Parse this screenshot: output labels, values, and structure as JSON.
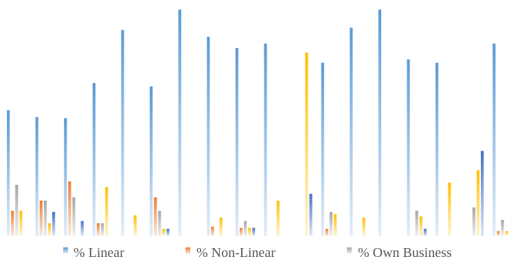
{
  "chart_data": {
    "type": "bar",
    "title": "",
    "xlabel": "",
    "ylabel": "",
    "ylim": [
      0,
      100
    ],
    "grid": false,
    "legend_position": "bottom",
    "categories": [
      "",
      "",
      "",
      "",
      "",
      "",
      "",
      "",
      "",
      "",
      "",
      "",
      "",
      "",
      "",
      "",
      "",
      ""
    ],
    "series": [
      {
        "name": "% Linear",
        "color": "#5B9BD5",
        "values": [
          55.5,
          52.5,
          52,
          67.5,
          91,
          66,
          100,
          88,
          83,
          85,
          0,
          76.5,
          92,
          100,
          78,
          76.5,
          0,
          85
        ]
      },
      {
        "name": "% Non-Linear",
        "color": "#ED7D31",
        "values": [
          11,
          15.5,
          24,
          5.5,
          0,
          17,
          0,
          4,
          3.5,
          0,
          0,
          3,
          0,
          0,
          0,
          0,
          0,
          2
        ]
      },
      {
        "name": "% Own Business",
        "color": "#A5A5A5",
        "values": [
          22.5,
          15.5,
          17,
          5.5,
          0,
          11,
          0,
          0,
          6.5,
          0,
          0,
          10.5,
          0,
          0,
          11,
          0,
          12.5,
          7
        ]
      },
      {
        "name": "",
        "color": "#FFC000",
        "values": [
          11,
          5.5,
          0,
          21.5,
          9,
          3,
          0,
          8,
          3.5,
          15.5,
          81,
          9.5,
          8,
          0,
          8.5,
          23.5,
          29,
          2
        ]
      },
      {
        "name": "",
        "color": "#4472C4",
        "values": [
          0,
          10.5,
          6.5,
          0,
          0,
          3,
          0,
          0,
          3.5,
          0,
          18.5,
          0,
          0,
          0,
          3,
          0,
          37.5,
          0
        ]
      }
    ]
  }
}
